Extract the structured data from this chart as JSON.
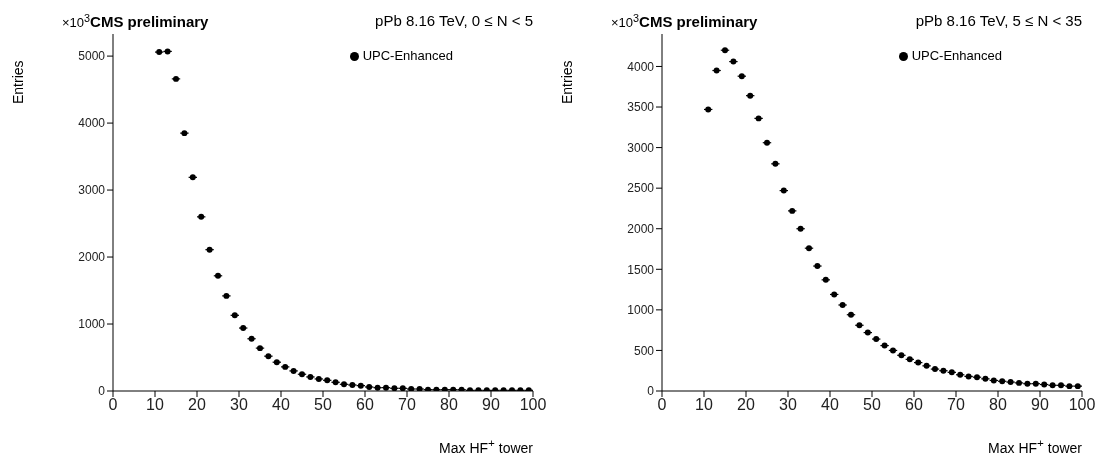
{
  "chart_data": [
    {
      "type": "scatter",
      "title": "CMS preliminary",
      "subtitle": "pPb 8.16 TeV, 0 ≤ N < 5",
      "annotations": [
        "×10$^{3}$"
      ],
      "xlabel": "Max HF$^{+}$ tower",
      "ylabel": "Entries",
      "x": [
        11,
        13,
        15,
        17,
        19,
        21,
        23,
        25,
        27,
        29,
        31,
        33,
        35,
        37,
        39,
        41,
        43,
        45,
        47,
        49,
        51,
        53,
        55,
        57,
        59,
        61,
        63,
        65,
        67,
        69,
        71,
        73,
        75,
        77,
        79,
        81,
        83,
        85,
        87,
        89,
        91,
        93,
        95,
        97,
        99
      ],
      "series": [
        {
          "name": "UPC-Enhanced",
          "color": "#000000",
          "values": [
            5060,
            5070,
            4660,
            3850,
            3190,
            2600,
            2110,
            1720,
            1420,
            1130,
            940,
            780,
            640,
            520,
            430,
            360,
            300,
            250,
            210,
            180,
            160,
            130,
            100,
            90,
            80,
            60,
            50,
            50,
            40,
            40,
            30,
            30,
            20,
            20,
            20,
            20,
            20,
            10,
            10,
            10,
            10,
            10,
            10,
            10,
            10
          ],
          "xerrors": [
            1,
            1,
            1,
            1,
            1,
            1,
            1,
            1,
            1,
            1,
            1,
            1,
            1,
            1,
            1,
            1,
            1,
            1,
            1,
            1,
            1,
            1,
            1,
            1,
            1,
            1,
            1,
            1,
            1,
            1,
            1,
            1,
            1,
            1,
            1,
            1,
            1,
            1,
            1,
            1,
            1,
            1,
            1,
            1,
            1
          ]
        }
      ],
      "xlim": [
        0,
        100
      ],
      "xticks": [
        0,
        10,
        20,
        30,
        40,
        50,
        60,
        70,
        80,
        90,
        100
      ],
      "ylim": [
        0,
        5330
      ],
      "yticks": [
        0,
        1000,
        2000,
        3000,
        4000,
        5000
      ],
      "grid": false,
      "legend": "top right",
      "marker": "circle"
    },
    {
      "type": "scatter",
      "title": "CMS preliminary",
      "subtitle": "pPb 8.16 TeV, 5 ≤ N < 35",
      "annotations": [
        "×10$^{3}$"
      ],
      "xlabel": "Max HF$^{+}$ tower",
      "ylabel": "Entries",
      "x": [
        11,
        13,
        15,
        17,
        19,
        21,
        23,
        25,
        27,
        29,
        31,
        33,
        35,
        37,
        39,
        41,
        43,
        45,
        47,
        49,
        51,
        53,
        55,
        57,
        59,
        61,
        63,
        65,
        67,
        69,
        71,
        73,
        75,
        77,
        79,
        81,
        83,
        85,
        87,
        89,
        91,
        93,
        95,
        97,
        99
      ],
      "series": [
        {
          "name": "UPC-Enhanced",
          "color": "#000000",
          "values": [
            3470,
            3950,
            4200,
            4060,
            3880,
            3640,
            3360,
            3060,
            2800,
            2470,
            2220,
            2000,
            1760,
            1540,
            1370,
            1190,
            1060,
            940,
            810,
            720,
            640,
            560,
            500,
            440,
            390,
            350,
            310,
            270,
            250,
            230,
            200,
            180,
            170,
            150,
            130,
            120,
            110,
            100,
            90,
            90,
            80,
            70,
            70,
            60,
            60
          ],
          "xerrors": [
            1,
            1,
            1,
            1,
            1,
            1,
            1,
            1,
            1,
            1,
            1,
            1,
            1,
            1,
            1,
            1,
            1,
            1,
            1,
            1,
            1,
            1,
            1,
            1,
            1,
            1,
            1,
            1,
            1,
            1,
            1,
            1,
            1,
            1,
            1,
            1,
            1,
            1,
            1,
            1,
            1,
            1,
            1,
            1,
            1
          ]
        }
      ],
      "xlim": [
        0,
        100
      ],
      "xticks": [
        0,
        10,
        20,
        30,
        40,
        50,
        60,
        70,
        80,
        90,
        100
      ],
      "ylim": [
        0,
        4400
      ],
      "yticks": [
        0,
        500,
        1000,
        1500,
        2000,
        2500,
        3000,
        3500,
        4000
      ],
      "grid": false,
      "legend": "top right",
      "marker": "circle"
    }
  ]
}
